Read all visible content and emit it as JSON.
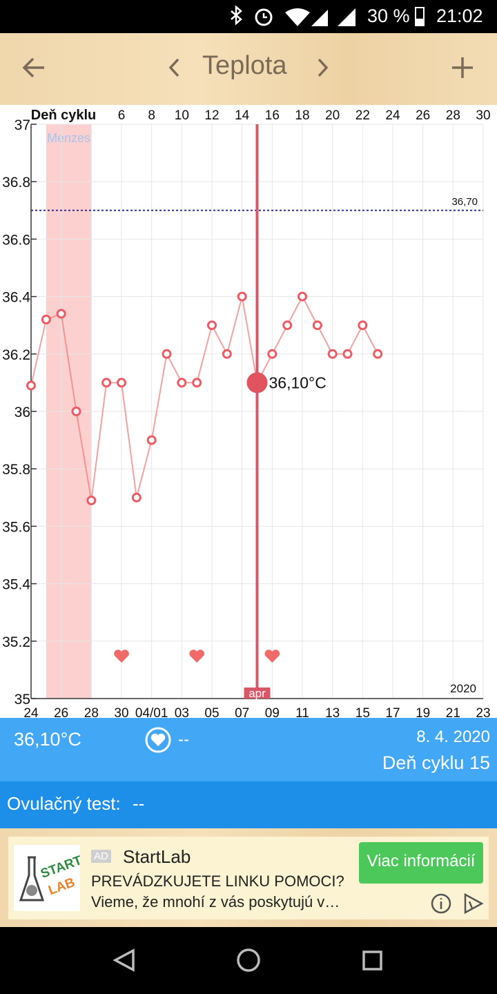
{
  "status_bar": {
    "battery": "30 %",
    "time": "21:02"
  },
  "header": {
    "title": "Teplota"
  },
  "chart_data": {
    "type": "line",
    "x2label": "Deň cyklu",
    "x": [
      0,
      1,
      2,
      3,
      4,
      5,
      6,
      7,
      8,
      9,
      10,
      11,
      12,
      13,
      14,
      15,
      16,
      17,
      18,
      19,
      20,
      21,
      22,
      23
    ],
    "values": [
      36.09,
      36.32,
      36.34,
      36.0,
      35.69,
      36.1,
      36.1,
      35.7,
      35.9,
      36.2,
      36.1,
      36.1,
      36.3,
      36.2,
      36.4,
      36.1,
      36.2,
      36.3,
      36.4,
      36.3,
      36.2,
      36.2,
      36.3,
      36.2
    ],
    "color": "#f07878",
    "xlim": [
      0,
      30
    ],
    "ylim": [
      35,
      37
    ],
    "yticks": [
      35,
      35.2,
      35.4,
      35.6,
      35.8,
      36,
      36.2,
      36.4,
      36.6,
      36.8,
      37
    ],
    "xticks": [
      {
        "value": 0,
        "label": "24"
      },
      {
        "value": 2,
        "label": "26"
      },
      {
        "value": 4,
        "label": "28"
      },
      {
        "value": 6,
        "label": "30"
      },
      {
        "value": 8,
        "label": "04/01"
      },
      {
        "value": 10,
        "label": "03"
      },
      {
        "value": 12,
        "label": "05"
      },
      {
        "value": 14,
        "label": "07"
      },
      {
        "value": 16,
        "label": "09"
      },
      {
        "value": 18,
        "label": "11"
      },
      {
        "value": 20,
        "label": "13"
      },
      {
        "value": 22,
        "label": "15"
      },
      {
        "value": 24,
        "label": "17"
      },
      {
        "value": 26,
        "label": "19"
      },
      {
        "value": 28,
        "label": "21"
      },
      {
        "value": 30,
        "label": "23"
      }
    ],
    "x2ticks": [
      6,
      8,
      10,
      12,
      14,
      16,
      18,
      20,
      22,
      24,
      26,
      28,
      30
    ],
    "grid": true,
    "reference_line": {
      "value": 36.7,
      "label": "36,70"
    },
    "period": {
      "label": "Menzes",
      "start": 1,
      "end": 4
    },
    "selected": {
      "x": 15,
      "value": 36.1,
      "label": "36,10°C"
    },
    "heart_x": [
      6,
      11,
      16
    ],
    "month_label": {
      "x": 15,
      "label": "apr"
    },
    "year_label": "2020"
  },
  "info": {
    "temperature": "36,10°C",
    "heart": "--",
    "date": "8. 4. 2020",
    "cycle_day": "Deň cyklu 15",
    "ovulation_label": "Ovulačný test:",
    "ovulation_value": "--"
  },
  "ad": {
    "badge": "AD",
    "advertiser": "StartLab",
    "headline": "PREVÁDZKUJETE LINKU POMOCI?",
    "body": "Vieme, že mnohí z vás poskytujú v…",
    "button": "Viac informácií",
    "logo_top": "START",
    "logo_bottom": "LAB"
  }
}
